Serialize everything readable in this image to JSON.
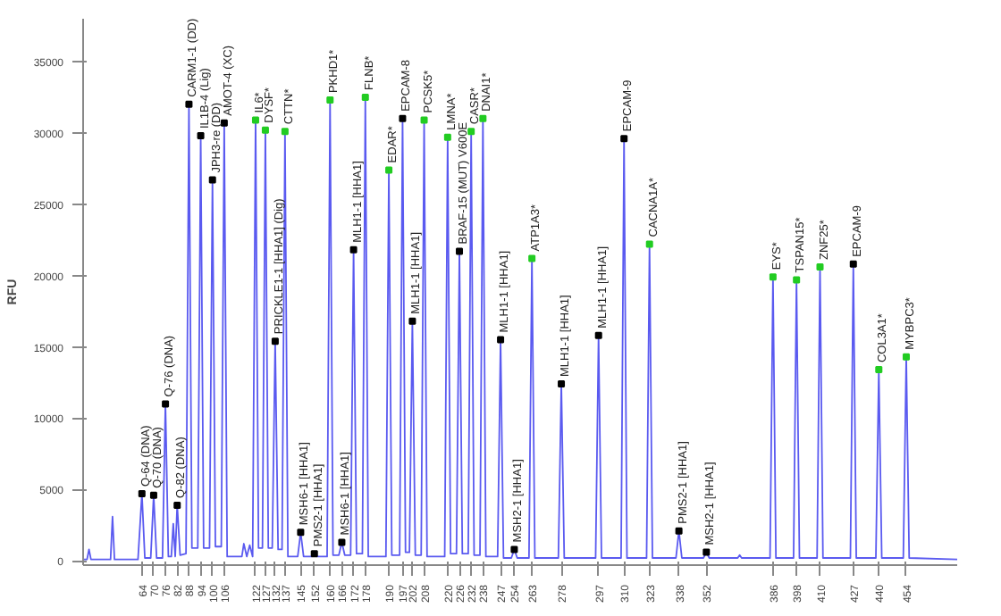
{
  "chart_data": {
    "type": "line",
    "ylabel": "RFU",
    "xlim": [
      34,
      480
    ],
    "ylim": [
      -300,
      38000
    ],
    "xticks": [
      64,
      70,
      76,
      82,
      88,
      94,
      100,
      106,
      122,
      127,
      132,
      137,
      145,
      152,
      160,
      166,
      172,
      178,
      190,
      197,
      202,
      208,
      220,
      226,
      232,
      238,
      247,
      254,
      263,
      278,
      297,
      310,
      323,
      338,
      352,
      386,
      398,
      410,
      427,
      440,
      454
    ],
    "yticks": [
      0,
      5000,
      10000,
      15000,
      20000,
      25000,
      30000,
      35000
    ],
    "grid": false,
    "series": [
      {
        "type": "line",
        "color": "#5a5af0",
        "x": [
          34,
          36,
          37,
          38,
          40,
          48,
          49,
          50,
          62,
          64,
          65.5,
          68.5,
          70,
          71.5,
          74.5,
          76,
          77.5,
          79,
          80,
          81,
          82,
          83.5,
          86.5,
          88,
          89.5,
          92.5,
          94,
          95.5,
          98.5,
          100,
          101.5,
          104.5,
          106,
          107.5,
          115,
          116,
          117.5,
          119,
          120.5,
          122,
          123.5,
          125.5,
          127,
          128.5,
          130.5,
          132,
          133.5,
          135.5,
          137,
          138.5,
          143.5,
          145,
          146.5,
          150.5,
          152,
          153.5,
          158.5,
          160,
          161.5,
          164.5,
          166,
          167.5,
          170.5,
          172,
          173.5,
          176.5,
          178,
          179.5,
          188.5,
          190,
          191.5,
          195.5,
          197,
          198.5,
          200.5,
          202,
          203.5,
          206.5,
          208,
          209.5,
          218.5,
          220,
          221.5,
          224.5,
          226,
          227.5,
          230.5,
          232,
          233.5,
          236.5,
          238,
          239.5,
          245.5,
          247,
          248.5,
          252.5,
          254,
          255.5,
          261.5,
          263,
          264.5,
          276.5,
          278,
          279.5,
          295.5,
          297,
          298.5,
          308.5,
          310,
          311.5,
          321.5,
          323,
          324.5,
          336.5,
          338,
          339.5,
          350.5,
          352,
          353.5,
          368,
          369,
          370,
          384.5,
          386,
          387.5,
          396.5,
          398,
          399.5,
          408.5,
          410,
          411.5,
          425.5,
          427,
          428.5,
          438.5,
          440,
          441.5,
          452.5,
          454,
          455.5,
          480
        ],
        "values": [
          100,
          100,
          800,
          100,
          100,
          100,
          3100,
          100,
          100,
          4700,
          200,
          200,
          4600,
          200,
          200,
          11000,
          300,
          300,
          2600,
          300,
          3900,
          400,
          500,
          32000,
          900,
          900,
          29800,
          900,
          900,
          26700,
          1000,
          1000,
          30700,
          300,
          300,
          1200,
          300,
          1100,
          300,
          30900,
          900,
          900,
          30200,
          900,
          900,
          15400,
          800,
          800,
          30100,
          300,
          300,
          2000,
          300,
          300,
          500,
          300,
          300,
          32300,
          400,
          400,
          1300,
          400,
          400,
          21800,
          500,
          500,
          32500,
          300,
          300,
          27400,
          400,
          400,
          31000,
          600,
          600,
          16800,
          400,
          400,
          30900,
          300,
          300,
          29700,
          500,
          500,
          21700,
          500,
          500,
          30100,
          400,
          400,
          31000,
          300,
          300,
          15500,
          200,
          200,
          800,
          200,
          200,
          21200,
          200,
          200,
          12400,
          200,
          200,
          15800,
          200,
          200,
          29600,
          200,
          200,
          22200,
          200,
          200,
          2100,
          200,
          200,
          600,
          200,
          200,
          400,
          200,
          200,
          19900,
          200,
          200,
          19700,
          200,
          200,
          20600,
          200,
          200,
          20800,
          200,
          200,
          13400,
          200,
          200,
          14300,
          200,
          100
        ]
      },
      {
        "type": "scatter",
        "marker": "square",
        "x": [
          64,
          70,
          76,
          82,
          88,
          94,
          100,
          106,
          122,
          127,
          132,
          137,
          145,
          152,
          160,
          166,
          172,
          178,
          190,
          197,
          202,
          208,
          220,
          226,
          232,
          238,
          247,
          254,
          263,
          278,
          297,
          310,
          323,
          338,
          352,
          386,
          398,
          410,
          427,
          440,
          454
        ],
        "values": [
          4700,
          4600,
          11000,
          3900,
          32000,
          29800,
          26700,
          30700,
          30900,
          30200,
          15400,
          30100,
          2000,
          500,
          32300,
          1300,
          21800,
          32500,
          27400,
          31000,
          16800,
          30900,
          29700,
          21700,
          30100,
          31000,
          15500,
          800,
          21200,
          12400,
          15800,
          29600,
          22200,
          2100,
          600,
          19900,
          19700,
          20600,
          20800,
          13400,
          14300
        ],
        "colors": [
          "#000000",
          "#000000",
          "#000000",
          "#000000",
          "#000000",
          "#000000",
          "#000000",
          "#000000",
          "#22cc22",
          "#22cc22",
          "#000000",
          "#22cc22",
          "#000000",
          "#000000",
          "#22cc22",
          "#000000",
          "#000000",
          "#22cc22",
          "#22cc22",
          "#000000",
          "#000000",
          "#22cc22",
          "#22cc22",
          "#000000",
          "#22cc22",
          "#22cc22",
          "#000000",
          "#000000",
          "#22cc22",
          "#000000",
          "#000000",
          "#000000",
          "#22cc22",
          "#000000",
          "#000000",
          "#22cc22",
          "#22cc22",
          "#22cc22",
          "#000000",
          "#22cc22",
          "#22cc22"
        ]
      }
    ],
    "annotations": [
      {
        "text": "Q-64 (DNA)",
        "x": 64,
        "y": 4700
      },
      {
        "text": "Q-70 (DNA)",
        "x": 70,
        "y": 4600
      },
      {
        "text": "Q-76 (DNA)",
        "x": 76,
        "y": 11000
      },
      {
        "text": "Q-82 (DNA)",
        "x": 82,
        "y": 3900
      },
      {
        "text": "CARM1-1 (DD)",
        "x": 88,
        "y": 32000
      },
      {
        "text": "IL1B-4 (Lig)",
        "x": 94,
        "y": 29800
      },
      {
        "text": "JPH3-re (DD)",
        "x": 100,
        "y": 26700
      },
      {
        "text": "AMOT-4 (XC)",
        "x": 106,
        "y": 30700
      },
      {
        "text": "IL6*",
        "x": 122,
        "y": 30900
      },
      {
        "text": "DYSF*",
        "x": 127,
        "y": 30200
      },
      {
        "text": "PRICKLE1-1 [HHA1] (Dig)",
        "x": 132,
        "y": 15400
      },
      {
        "text": "CTTN*",
        "x": 137,
        "y": 30100
      },
      {
        "text": "MSH6-1 [HHA1]",
        "x": 145,
        "y": 2000
      },
      {
        "text": "PMS2-1 [HHA1]",
        "x": 152,
        "y": 500
      },
      {
        "text": "PKHD1*",
        "x": 160,
        "y": 32300
      },
      {
        "text": "MSH6-1 [HHA1]",
        "x": 166,
        "y": 1300
      },
      {
        "text": "MLH1-1 [HHA1]",
        "x": 172,
        "y": 21800
      },
      {
        "text": "FLNB*",
        "x": 178,
        "y": 32500
      },
      {
        "text": "EDAR*",
        "x": 190,
        "y": 27400
      },
      {
        "text": "EPCAM-8",
        "x": 197,
        "y": 31000
      },
      {
        "text": "MLH1-1 [HHA1]",
        "x": 202,
        "y": 16800
      },
      {
        "text": "PCSK5*",
        "x": 208,
        "y": 30900
      },
      {
        "text": "LMNA*",
        "x": 220,
        "y": 29700
      },
      {
        "text": "BRAF-15 (MUT) V600E",
        "x": 226,
        "y": 21700
      },
      {
        "text": "CASR*",
        "x": 232,
        "y": 30100
      },
      {
        "text": "DNAI1*",
        "x": 238,
        "y": 31000
      },
      {
        "text": "MLH1-1 [HHA1]",
        "x": 247,
        "y": 15500
      },
      {
        "text": "MSH2-1 [HHA1]",
        "x": 254,
        "y": 800
      },
      {
        "text": "ATP1A3*",
        "x": 263,
        "y": 21200
      },
      {
        "text": "MLH1-1 [HHA1]",
        "x": 278,
        "y": 12400
      },
      {
        "text": "MLH1-1 [HHA1]",
        "x": 297,
        "y": 15800
      },
      {
        "text": "EPCAM-9",
        "x": 310,
        "y": 29600
      },
      {
        "text": "CACNA1A*",
        "x": 323,
        "y": 22200
      },
      {
        "text": "PMS2-1 [HHA1]",
        "x": 338,
        "y": 2100
      },
      {
        "text": "MSH2-1 [HHA1]",
        "x": 352,
        "y": 600
      },
      {
        "text": "EYS*",
        "x": 386,
        "y": 19900
      },
      {
        "text": "TSPAN15*",
        "x": 398,
        "y": 19700
      },
      {
        "text": "ZNF25*",
        "x": 410,
        "y": 20600
      },
      {
        "text": "EPCAM-9",
        "x": 427,
        "y": 20800
      },
      {
        "text": "COL3A1*",
        "x": 440,
        "y": 13400
      },
      {
        "text": "MYBPC3*",
        "x": 454,
        "y": 14300
      }
    ]
  }
}
